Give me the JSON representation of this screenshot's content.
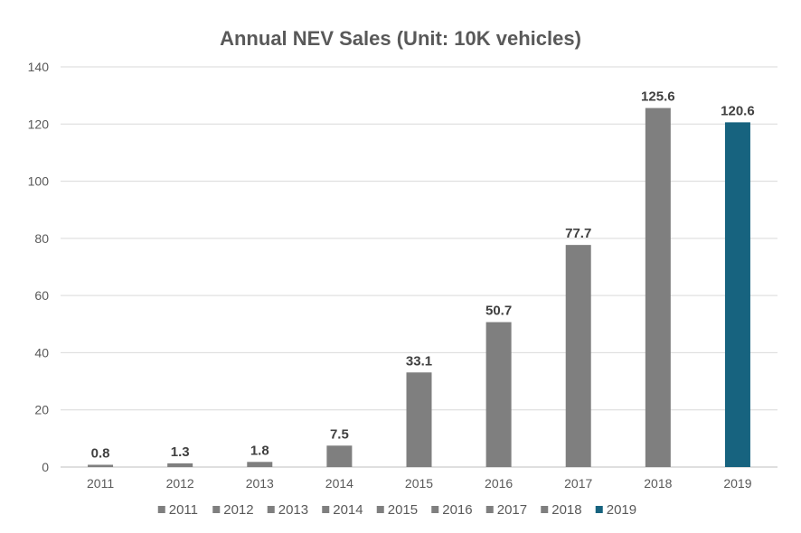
{
  "chart_data": {
    "type": "bar",
    "title": "Annual NEV Sales (Unit: 10K vehicles)",
    "xlabel": "",
    "ylabel": "",
    "categories": [
      "2011",
      "2012",
      "2013",
      "2014",
      "2015",
      "2016",
      "2017",
      "2018",
      "2019"
    ],
    "values": [
      0.8,
      1.3,
      1.8,
      7.5,
      33.1,
      50.7,
      77.7,
      125.6,
      120.6
    ],
    "data_labels": [
      "0.8",
      "1.3",
      "1.8",
      "7.5",
      "33.1",
      "50.7",
      "77.7",
      "125.6",
      "120.6"
    ],
    "ylim": [
      0,
      140
    ],
    "yticks": [
      0,
      20,
      40,
      60,
      80,
      100,
      120,
      140
    ],
    "ytick_labels": [
      "0",
      "20",
      "40",
      "60",
      "80",
      "100",
      "120",
      "140"
    ],
    "grid": true,
    "legend_position": "bottom",
    "legend_entries": [
      "2011",
      "2012",
      "2013",
      "2014",
      "2015",
      "2016",
      "2017",
      "2018",
      "2019"
    ],
    "colors": [
      "#7f7f7f",
      "#7f7f7f",
      "#7f7f7f",
      "#7f7f7f",
      "#7f7f7f",
      "#7f7f7f",
      "#7f7f7f",
      "#7f7f7f",
      "#17637f"
    ]
  }
}
